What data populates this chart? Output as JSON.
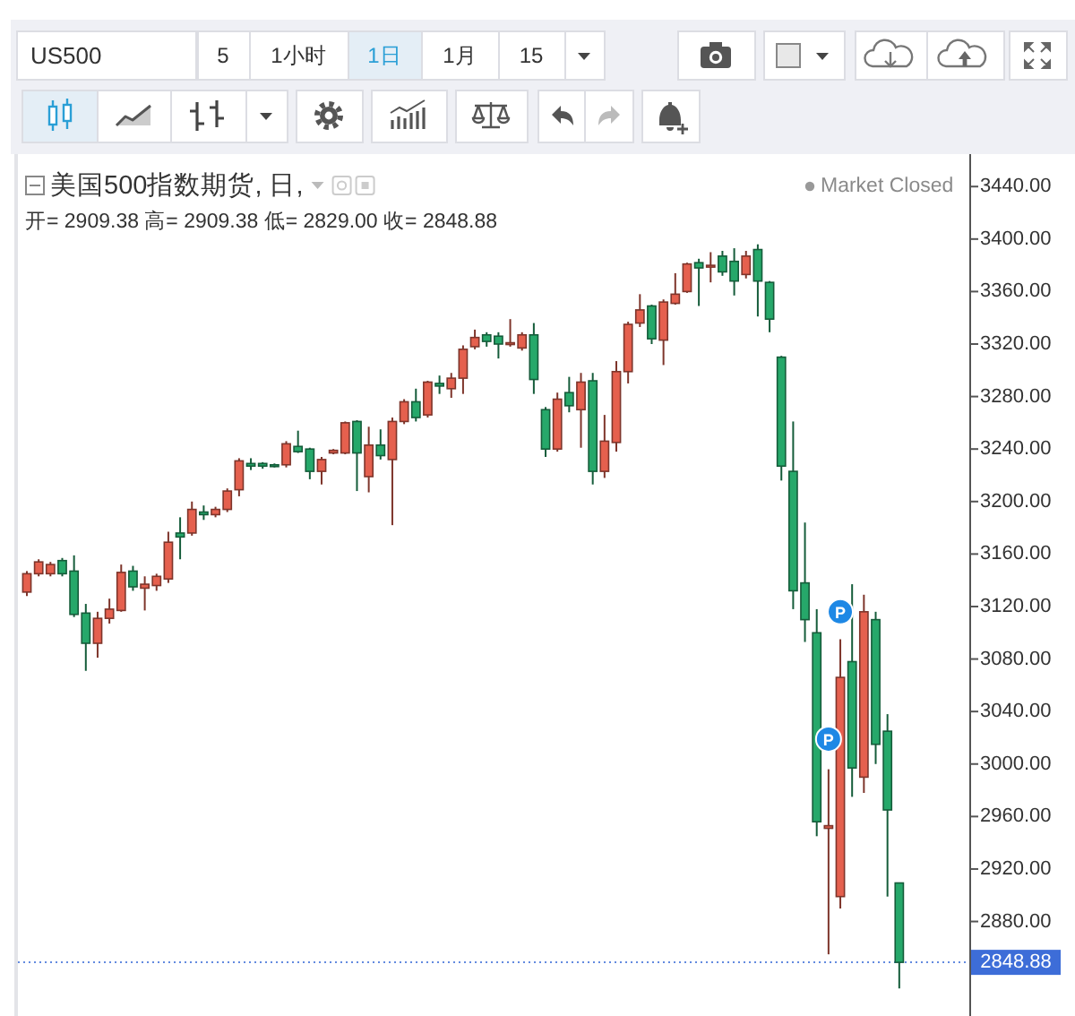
{
  "chart_data": {
    "type": "candlestick",
    "title": "美国500指数期货, 日,",
    "subtitle": "开= 2909.38 高= 2909.38 低= 2829.00 收= 2848.88",
    "categories": [
      null,
      null,
      null,
      null,
      null,
      null,
      null,
      null,
      null,
      null,
      null,
      null,
      null,
      null,
      null,
      null,
      null,
      null,
      null,
      null,
      null,
      null,
      null,
      null,
      null,
      null,
      null,
      null,
      null,
      null,
      null,
      null,
      null,
      null,
      null,
      null,
      null,
      null,
      null,
      null,
      null,
      null,
      null,
      null,
      null,
      null,
      null,
      null,
      null,
      null,
      null,
      null,
      null,
      null,
      null,
      null,
      null,
      null,
      null,
      null,
      null,
      null,
      null,
      null,
      null,
      null,
      null,
      null,
      null,
      null,
      null,
      null,
      null,
      null,
      null
    ],
    "ohlc": [
      [
        3131,
        3147,
        3128,
        3145
      ],
      [
        3145,
        3156,
        3143,
        3154
      ],
      [
        3145,
        3154,
        3143,
        3152
      ],
      [
        3155,
        3157,
        3143,
        3145
      ],
      [
        3147,
        3159,
        3112,
        3114
      ],
      [
        3115,
        3122,
        3071,
        3092
      ],
      [
        3092,
        3116,
        3081,
        3111
      ],
      [
        3111,
        3126,
        3107,
        3118
      ],
      [
        3117,
        3152,
        3116,
        3146
      ],
      [
        3147,
        3151,
        3132,
        3135
      ],
      [
        3134,
        3143,
        3117,
        3137
      ],
      [
        3136,
        3145,
        3132,
        3143
      ],
      [
        3141,
        3177,
        3138,
        3169
      ],
      [
        3176,
        3188,
        3156,
        3173
      ],
      [
        3176,
        3200,
        3174,
        3194
      ],
      [
        3192,
        3197,
        3186,
        3190
      ],
      [
        3190,
        3196,
        3188,
        3194
      ],
      [
        3194,
        3210,
        3192,
        3208
      ],
      [
        3209,
        3233,
        3204,
        3231
      ],
      [
        3229,
        3233,
        3224,
        3227
      ],
      [
        3229,
        3230,
        3225,
        3227
      ],
      [
        3228,
        3229,
        3226,
        3227
      ],
      [
        3228,
        3246,
        3226,
        3244
      ],
      [
        3242,
        3254,
        3237,
        3238
      ],
      [
        3240,
        3241,
        3217,
        3223
      ],
      [
        3223,
        3234,
        3213,
        3232
      ],
      [
        3237,
        3240,
        3236,
        3239
      ],
      [
        3237,
        3261,
        3236,
        3260
      ],
      [
        3261,
        3262,
        3208,
        3237
      ],
      [
        3219,
        3257,
        3207,
        3243
      ],
      [
        3243,
        3255,
        3232,
        3235
      ],
      [
        3232,
        3264,
        3182,
        3261
      ],
      [
        3261,
        3278,
        3259,
        3276
      ],
      [
        3276,
        3286,
        3261,
        3264
      ],
      [
        3266,
        3292,
        3264,
        3291
      ],
      [
        3290,
        3296,
        3282,
        3288
      ],
      [
        3286,
        3298,
        3279,
        3294
      ],
      [
        3294,
        3319,
        3282,
        3316
      ],
      [
        3318,
        3331,
        3316,
        3325
      ],
      [
        3327,
        3329,
        3318,
        3322
      ],
      [
        3326,
        3329,
        3309,
        3320
      ],
      [
        3320,
        3339,
        3318,
        3321
      ],
      [
        3317,
        3329,
        3315,
        3327
      ],
      [
        3327,
        3336,
        3282,
        3293
      ],
      [
        3270,
        3272,
        3234,
        3240
      ],
      [
        3240,
        3283,
        3238,
        3278
      ],
      [
        3283,
        3295,
        3268,
        3273
      ],
      [
        3270,
        3298,
        3241,
        3291
      ],
      [
        3292,
        3298,
        3213,
        3223
      ],
      [
        3223,
        3266,
        3218,
        3246
      ],
      [
        3245,
        3307,
        3238,
        3299
      ],
      [
        3299,
        3337,
        3290,
        3335
      ],
      [
        3336,
        3358,
        3333,
        3346
      ],
      [
        3349,
        3350,
        3320,
        3324
      ],
      [
        3323,
        3354,
        3304,
        3352
      ],
      [
        3351,
        3374,
        3350,
        3358
      ],
      [
        3360,
        3382,
        3359,
        3381
      ],
      [
        3382,
        3385,
        3349,
        3378
      ],
      [
        3379,
        3390,
        3367,
        3380
      ],
      [
        3387,
        3391,
        3372,
        3375
      ],
      [
        3383,
        3393,
        3357,
        3368
      ],
      [
        3373,
        3391,
        3370,
        3387
      ],
      [
        3392,
        3396,
        3341,
        3368
      ],
      [
        3367,
        3368,
        3329,
        3339
      ],
      [
        3310,
        3311,
        3216,
        3227
      ],
      [
        3223,
        3261,
        3118,
        3132
      ],
      [
        3138,
        3184,
        3093,
        3110
      ],
      [
        3100,
        3118,
        2945,
        2956
      ],
      [
        2951,
        2996,
        2855,
        2953
      ],
      [
        2899,
        3095,
        2890,
        3066
      ],
      [
        3078,
        3137,
        2975,
        2997
      ],
      [
        2990,
        3129,
        2978,
        3116
      ],
      [
        3110,
        3116,
        3000,
        3015
      ],
      [
        3025,
        3038,
        2899,
        2965
      ],
      [
        2909.38,
        2909.38,
        2829.0,
        2848.88
      ]
    ],
    "colors": [
      "#e5604e",
      "#e5604e",
      "#e5604e",
      "#26a86a",
      "#26a86a",
      "#26a86a",
      "#e5604e",
      "#e5604e",
      "#e5604e",
      "#26a86a",
      "#e5604e",
      "#e5604e",
      "#e5604e",
      "#26a86a",
      "#e5604e",
      "#26a86a",
      "#e5604e",
      "#e5604e",
      "#e5604e",
      "#26a86a",
      "#26a86a",
      "#26a86a",
      "#e5604e",
      "#26a86a",
      "#26a86a",
      "#e5604e",
      "#e5604e",
      "#e5604e",
      "#26a86a",
      "#e5604e",
      "#26a86a",
      "#e5604e",
      "#e5604e",
      "#26a86a",
      "#e5604e",
      "#26a86a",
      "#e5604e",
      "#e5604e",
      "#e5604e",
      "#26a86a",
      "#26a86a",
      "#e5604e",
      "#e5604e",
      "#26a86a",
      "#26a86a",
      "#e5604e",
      "#26a86a",
      "#e5604e",
      "#26a86a",
      "#e5604e",
      "#e5604e",
      "#e5604e",
      "#e5604e",
      "#26a86a",
      "#e5604e",
      "#e5604e",
      "#e5604e",
      "#26a86a",
      "#e5604e",
      "#26a86a",
      "#26a86a",
      "#e5604e",
      "#26a86a",
      "#26a86a",
      "#26a86a",
      "#26a86a",
      "#26a86a",
      "#26a86a",
      "#e5604e",
      "#e5604e",
      "#26a86a",
      "#e5604e",
      "#26a86a",
      "#26a86a",
      "#26a86a"
    ],
    "ylim": [
      2808,
      3462
    ],
    "yticks": [
      {
        "value": 2880,
        "label": "2880.00"
      },
      {
        "value": 2920,
        "label": "2920.00"
      },
      {
        "value": 2960,
        "label": "2960.00"
      },
      {
        "value": 3000,
        "label": "3000.00"
      },
      {
        "value": 3040,
        "label": "3040.00"
      },
      {
        "value": 3080,
        "label": "3080.00"
      },
      {
        "value": 3120,
        "label": "3120.00"
      },
      {
        "value": 3160,
        "label": "3160.00"
      },
      {
        "value": 3200,
        "label": "3200.00"
      },
      {
        "value": 3240,
        "label": "3240.00"
      },
      {
        "value": 3280,
        "label": "3280.00"
      },
      {
        "value": 3320,
        "label": "3320.00"
      },
      {
        "value": 3360,
        "label": "3360.00"
      },
      {
        "value": 3400,
        "label": "3400.00"
      },
      {
        "value": 3440,
        "label": "3440.00"
      }
    ],
    "tick_labels": "y",
    "ref_lines": [
      {
        "axis": "y",
        "value": 2848.88,
        "label": "2848.88",
        "color": "#3d6dd8",
        "line_style": "dotted"
      }
    ],
    "annotations": [
      "US500",
      "5",
      "1小时",
      "1日",
      "1月",
      "15",
      "Market Closed",
      {
        "text": "P",
        "y": 3116
      },
      {
        "text": "P",
        "y": 3019
      }
    ]
  }
}
